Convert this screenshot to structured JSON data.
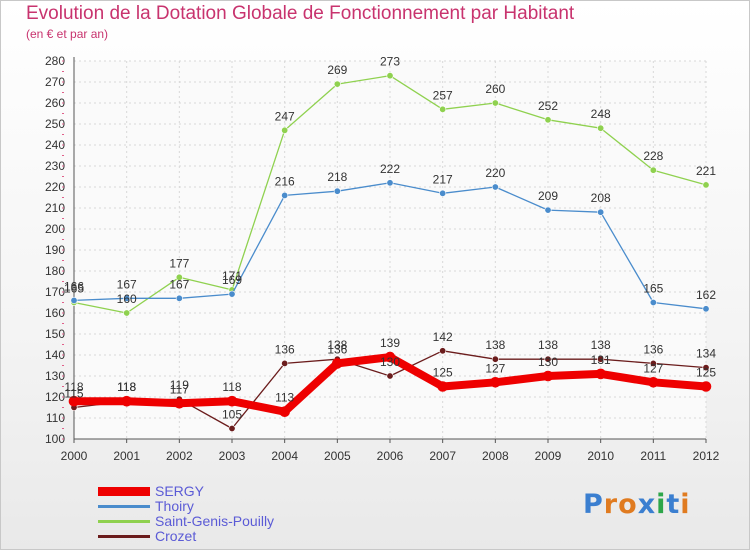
{
  "chart_data": {
    "type": "line",
    "title": "Evolution de la Dotation Globale de Fonctionnement par Habitant",
    "subtitle": "(en € et par an)",
    "xlabel": "",
    "ylabel": "",
    "categories": [
      "2000",
      "2001",
      "2002",
      "2003",
      "2004",
      "2005",
      "2006",
      "2007",
      "2008",
      "2009",
      "2010",
      "2011",
      "2012"
    ],
    "ylim": [
      100,
      280
    ],
    "yticks": [
      "100",
      "110",
      "120",
      "130",
      "140",
      "150",
      "160",
      "170",
      "180",
      "190",
      "200",
      "210",
      "220",
      "230",
      "240",
      "250",
      "260",
      "270",
      "280"
    ],
    "grid": true,
    "legend_position": "bottom-left",
    "series": [
      {
        "name": "Saint-Genis-Pouilly",
        "color": "#8fd14f",
        "values": [
          165,
          160,
          177,
          171,
          247,
          269,
          273,
          257,
          260,
          252,
          248,
          228,
          221
        ]
      },
      {
        "name": "Thoiry",
        "color": "#4a8ccc",
        "values": [
          166,
          167,
          167,
          169,
          216,
          218,
          222,
          217,
          220,
          209,
          208,
          165,
          162
        ]
      },
      {
        "name": "Crozet",
        "color": "#6b1c1c",
        "values": [
          115,
          118,
          119,
          105,
          136,
          138,
          130,
          142,
          138,
          138,
          138,
          136,
          134
        ]
      },
      {
        "name": "SERGY",
        "color": "#ee0000",
        "values": [
          118,
          118,
          117,
          118,
          113,
          136,
          139,
          125,
          127,
          130,
          131,
          127,
          125
        ]
      }
    ],
    "legend_order": [
      "SERGY",
      "Thoiry",
      "Saint-Genis-Pouilly",
      "Crozet"
    ]
  },
  "logo": {
    "text": "Proxiti",
    "letters": [
      "P",
      "r",
      "o",
      "x",
      "i",
      "t",
      "i"
    ],
    "colors": [
      "#3b7fd0",
      "#e07b20",
      "#e07b20",
      "#3b7fd0",
      "#2da64a",
      "#3b7fd0",
      "#e07b20"
    ]
  }
}
